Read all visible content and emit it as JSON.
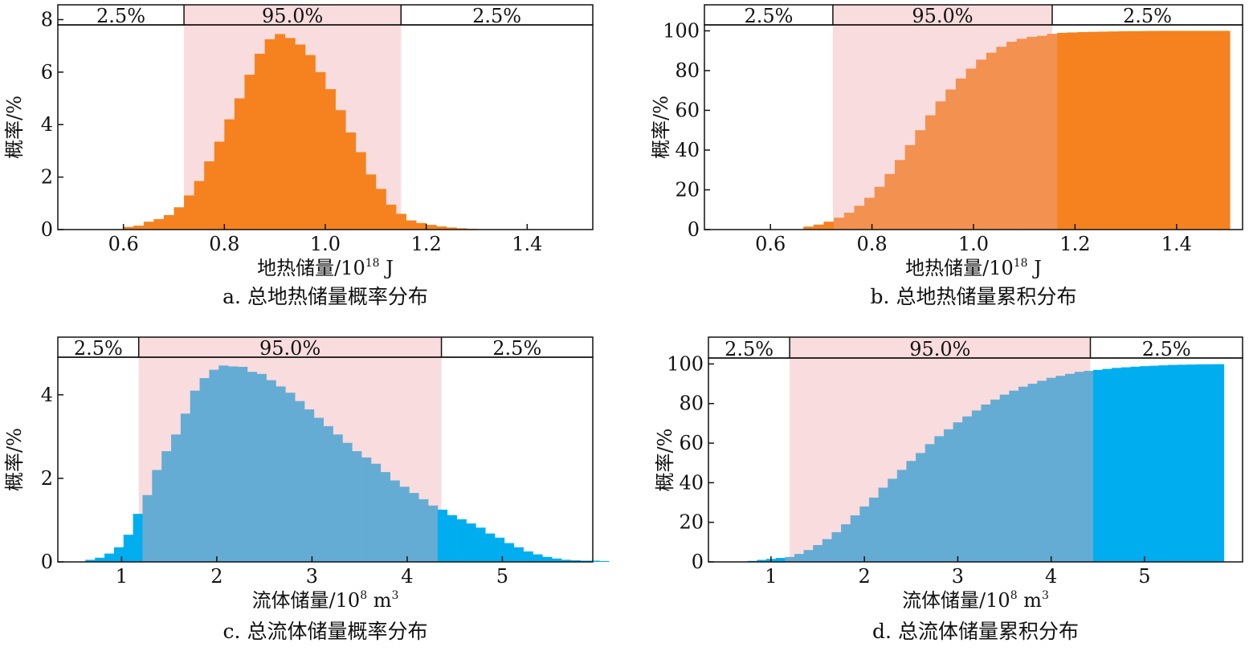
{
  "chart_data": [
    {
      "id": "a",
      "type": "bar",
      "title": "a. 总地热储量概率分布",
      "xlabel": "地热储量/10",
      "xlabel_exp": "18",
      "xlabel_unit": " J",
      "ylabel": "概率/%",
      "xlim": [
        0.47,
        1.53
      ],
      "ylim": [
        0,
        7.8
      ],
      "xticks": [
        0.6,
        0.8,
        1.0,
        1.2,
        1.4
      ],
      "xtick_labels": [
        "0.6",
        "0.8",
        "1.0",
        "1.2",
        "1.4"
      ],
      "yticks": [
        0,
        2,
        4,
        6,
        8
      ],
      "ytick_labels": [
        "0",
        "2",
        "4",
        "6",
        "8"
      ],
      "interval": [
        0.72,
        1.15
      ],
      "interval_labels": [
        "2.5%",
        "95.0%",
        "2.5%"
      ],
      "bin_start": 0.6,
      "bin_width": 0.02,
      "values": [
        0.1,
        0.15,
        0.3,
        0.4,
        0.55,
        0.85,
        1.3,
        1.85,
        2.6,
        3.35,
        4.2,
        5.0,
        5.9,
        6.7,
        7.25,
        7.45,
        7.3,
        7.05,
        6.65,
        6.0,
        5.35,
        4.55,
        3.7,
        2.95,
        2.1,
        1.55,
        0.95,
        0.6,
        0.35,
        0.25,
        0.18,
        0.12,
        0.08,
        0.05,
        0.03
      ],
      "colors": {
        "tail": "#f5821f",
        "middle": "#f5821f",
        "band": "#f9dcdd"
      }
    },
    {
      "id": "b",
      "type": "bar",
      "title": "b. 总地热储量累积分布",
      "xlabel": "地热储量/10",
      "xlabel_exp": "18",
      "xlabel_unit": " J",
      "ylabel": "概率/%",
      "xlim": [
        0.47,
        1.53
      ],
      "ylim": [
        0,
        103
      ],
      "xticks": [
        0.6,
        0.8,
        1.0,
        1.2,
        1.4
      ],
      "xtick_labels": [
        "0.6",
        "0.8",
        "1.0",
        "1.2",
        "1.4"
      ],
      "yticks": [
        0,
        20,
        40,
        60,
        80,
        100
      ],
      "ytick_labels": [
        "0",
        "20",
        "40",
        "60",
        "80",
        "100"
      ],
      "interval": [
        0.723,
        1.155
      ],
      "interval_labels": [
        "2.5%",
        "95.0%",
        "2.5%"
      ],
      "bin_start": 0.665,
      "bin_width": 0.02,
      "values": [
        1.5,
        2.5,
        4.0,
        6.0,
        8.5,
        12.0,
        16.0,
        21.5,
        28.0,
        35.0,
        42.5,
        50.0,
        57.5,
        64.5,
        70.5,
        76.0,
        81.0,
        85.5,
        89.0,
        92.0,
        94.5,
        96.0,
        97.0,
        97.5,
        98.5,
        99.0,
        99.2,
        99.4,
        99.5,
        99.6,
        99.7,
        99.8,
        99.85,
        99.9,
        99.95,
        100.0,
        100.0,
        100.0,
        100.0,
        100.0,
        100.0,
        100.0
      ],
      "colors": {
        "tail": "#f5821f",
        "middle": "#f39150",
        "band": "#f9dcdd"
      }
    },
    {
      "id": "c",
      "type": "bar",
      "title": "c. 总流体储量概率分布",
      "xlabel": "流体储量/10",
      "xlabel_exp": "8",
      "xlabel_unit": " m",
      "xlabel_unit_exp": "3",
      "ylabel": "概率/%",
      "xlim": [
        0.33,
        5.95
      ],
      "ylim": [
        0,
        4.9
      ],
      "xticks": [
        1,
        2,
        3,
        4,
        5
      ],
      "xtick_labels": [
        "1",
        "2",
        "3",
        "4",
        "5"
      ],
      "yticks": [
        0,
        2,
        4
      ],
      "ytick_labels": [
        "0",
        "2",
        "4"
      ],
      "interval": [
        1.18,
        4.36
      ],
      "interval_labels": [
        "2.5%",
        "95.0%",
        "2.5%"
      ],
      "bin_start": 0.62,
      "bin_width": 0.1,
      "values": [
        0.05,
        0.1,
        0.2,
        0.35,
        0.65,
        1.15,
        1.6,
        2.2,
        2.65,
        3.05,
        3.55,
        4.1,
        4.4,
        4.6,
        4.7,
        4.68,
        4.67,
        4.55,
        4.5,
        4.35,
        4.2,
        4.05,
        3.85,
        3.65,
        3.45,
        3.25,
        3.05,
        2.85,
        2.65,
        2.5,
        2.35,
        2.15,
        1.95,
        1.8,
        1.65,
        1.5,
        1.35,
        1.25,
        1.12,
        1.02,
        0.92,
        0.82,
        0.68,
        0.58,
        0.45,
        0.35,
        0.25,
        0.18,
        0.12,
        0.08,
        0.05,
        0.04,
        0.03,
        0.03,
        0.02
      ],
      "colors": {
        "tail": "#00aeef",
        "middle": "#65acd4",
        "band": "#f9dcdd"
      }
    },
    {
      "id": "d",
      "type": "bar",
      "title": "d. 总流体储量累积分布",
      "xlabel": "流体储量/10",
      "xlabel_exp": "8",
      "xlabel_unit": " m",
      "xlabel_unit_exp": "3",
      "ylabel": "概率/%",
      "xlim": [
        0.33,
        6.05
      ],
      "ylim": [
        0,
        103
      ],
      "xticks": [
        1,
        2,
        3,
        4,
        5
      ],
      "xtick_labels": [
        "1",
        "2",
        "3",
        "4",
        "5"
      ],
      "yticks": [
        0,
        20,
        40,
        60,
        80,
        100
      ],
      "ytick_labels": [
        "0",
        "20",
        "40",
        "60",
        "80",
        "100"
      ],
      "interval": [
        1.2,
        4.42
      ],
      "interval_labels": [
        "2.5%",
        "95.0%",
        "2.5%"
      ],
      "bin_start": 0.75,
      "bin_width": 0.1,
      "values": [
        0.5,
        1.0,
        1.5,
        2.0,
        2.5,
        4.0,
        6.0,
        8.5,
        11.5,
        15.0,
        19.0,
        23.5,
        28.0,
        32.5,
        37.5,
        42.0,
        46.5,
        51.0,
        55.0,
        59.5,
        63.5,
        67.0,
        70.5,
        73.5,
        76.5,
        79.5,
        82.0,
        84.5,
        86.5,
        88.5,
        90.0,
        91.5,
        93.0,
        94.0,
        95.0,
        96.0,
        96.5,
        97.0,
        97.5,
        98.0,
        98.3,
        98.6,
        98.9,
        99.1,
        99.3,
        99.5,
        99.6,
        99.7,
        99.8,
        99.85,
        99.9
      ],
      "colors": {
        "tail": "#00aeef",
        "middle": "#65acd4",
        "band": "#f9dcdd"
      }
    }
  ]
}
